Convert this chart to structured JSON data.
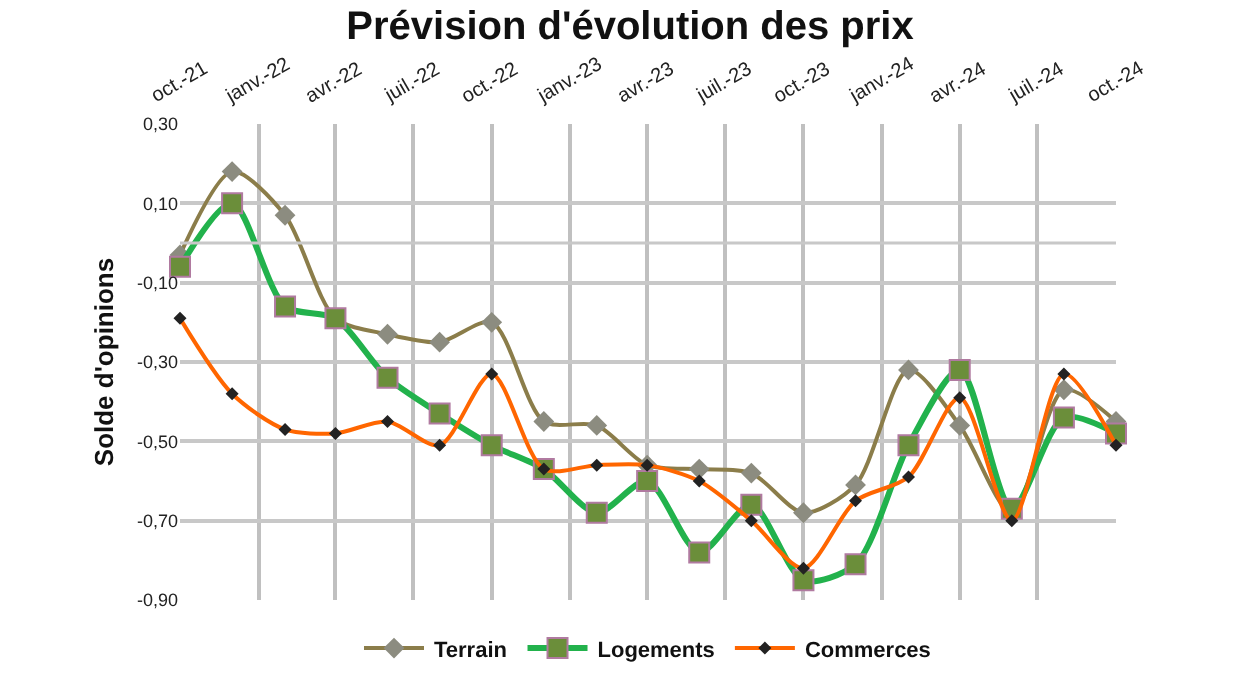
{
  "chart_data": {
    "type": "line",
    "title": "Prévision d'évolution des prix",
    "ylabel": "Solde d'opinions",
    "x": [
      "2021-10-01",
      "2021-12-01",
      "2022-02-01",
      "2022-04-01",
      "2022-06-01",
      "2022-08-01",
      "2022-10-01",
      "2022-12-01",
      "2023-02-01",
      "2023-04-01",
      "2023-06-01",
      "2023-08-01",
      "2023-10-01",
      "2023-12-01",
      "2024-02-01",
      "2024-04-01",
      "2024-06-01",
      "2024-08-01",
      "2024-10-01"
    ],
    "series": [
      {
        "name": "Terrain",
        "color": "#8b7d4a",
        "marker": "diamond",
        "values": [
          -0.03,
          0.18,
          0.07,
          -0.19,
          -0.23,
          -0.25,
          -0.2,
          -0.45,
          -0.46,
          -0.56,
          -0.57,
          -0.58,
          -0.68,
          -0.61,
          -0.32,
          -0.46,
          -0.68,
          -0.37,
          -0.45
        ]
      },
      {
        "name": "Logements",
        "color": "#22b24c",
        "marker": "square",
        "values": [
          -0.06,
          0.1,
          -0.16,
          -0.19,
          -0.34,
          -0.43,
          -0.51,
          -0.57,
          -0.68,
          -0.6,
          -0.78,
          -0.66,
          -0.85,
          -0.81,
          -0.51,
          -0.32,
          -0.67,
          -0.44,
          -0.48
        ]
      },
      {
        "name": "Commerces",
        "color": "#ff6600",
        "marker": "diamond",
        "values": [
          -0.19,
          -0.38,
          -0.47,
          -0.48,
          -0.45,
          -0.51,
          -0.33,
          -0.57,
          -0.56,
          -0.56,
          -0.6,
          -0.7,
          -0.82,
          -0.65,
          -0.59,
          -0.39,
          -0.7,
          -0.33,
          -0.51
        ]
      }
    ],
    "xlim": [
      "2021-10-01",
      "2024-10-01"
    ],
    "xticks": [
      {
        "value": "2021-10-01",
        "label": "oct.-21"
      },
      {
        "value": "2022-01-01",
        "label": "janv.-22"
      },
      {
        "value": "2022-04-01",
        "label": "avr.-22"
      },
      {
        "value": "2022-07-01",
        "label": "juil.-22"
      },
      {
        "value": "2022-10-01",
        "label": "oct.-22"
      },
      {
        "value": "2023-01-01",
        "label": "janv.-23"
      },
      {
        "value": "2023-04-01",
        "label": "avr.-23"
      },
      {
        "value": "2023-07-01",
        "label": "juil.-23"
      },
      {
        "value": "2023-10-01",
        "label": "oct.-23"
      },
      {
        "value": "2024-01-01",
        "label": "janv.-24"
      },
      {
        "value": "2024-04-01",
        "label": "avr.-24"
      },
      {
        "value": "2024-07-01",
        "label": "juil.-24"
      },
      {
        "value": "2024-10-01",
        "label": "oct.-24"
      }
    ],
    "ylim": [
      -0.9,
      0.3
    ],
    "yticks": [
      {
        "value": -0.9,
        "label": "-0,90"
      },
      {
        "value": -0.7,
        "label": "-0,70"
      },
      {
        "value": -0.5,
        "label": "-0,50"
      },
      {
        "value": -0.3,
        "label": "-0,30"
      },
      {
        "value": -0.1,
        "label": "-0,10"
      },
      {
        "value": 0.1,
        "label": "0,10"
      },
      {
        "value": 0.3,
        "label": "0,30"
      }
    ],
    "ref_lines": [
      {
        "axis": "y",
        "value": 0,
        "color": "#c8c8c8"
      }
    ],
    "grid": true,
    "legend": "bottom",
    "line_style": "solid"
  }
}
